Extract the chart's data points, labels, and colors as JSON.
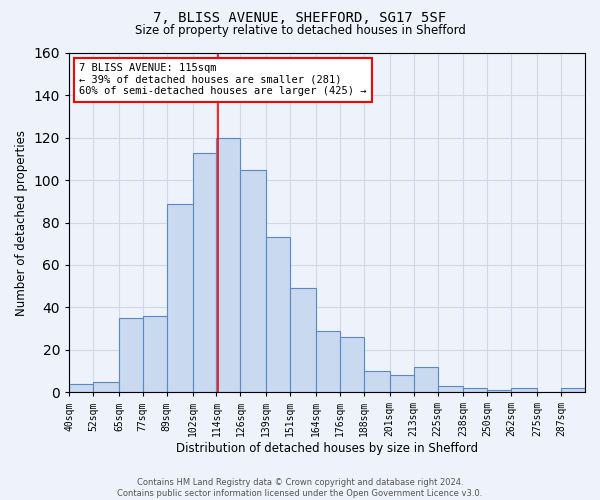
{
  "title": "7, BLISS AVENUE, SHEFFORD, SG17 5SF",
  "subtitle": "Size of property relative to detached houses in Shefford",
  "xlabel": "Distribution of detached houses by size in Shefford",
  "ylabel": "Number of detached properties",
  "bin_labels": [
    "40sqm",
    "52sqm",
    "65sqm",
    "77sqm",
    "89sqm",
    "102sqm",
    "114sqm",
    "126sqm",
    "139sqm",
    "151sqm",
    "164sqm",
    "176sqm",
    "188sqm",
    "201sqm",
    "213sqm",
    "225sqm",
    "238sqm",
    "250sqm",
    "262sqm",
    "275sqm",
    "287sqm"
  ],
  "bin_edges": [
    40,
    52,
    65,
    77,
    89,
    102,
    114,
    126,
    139,
    151,
    164,
    176,
    188,
    201,
    213,
    225,
    238,
    250,
    262,
    275,
    287,
    299
  ],
  "counts": [
    4,
    5,
    35,
    36,
    89,
    113,
    120,
    105,
    73,
    49,
    29,
    26,
    10,
    8,
    12,
    3,
    2,
    1,
    2,
    0,
    2
  ],
  "bar_facecolor": "#c9d9f0",
  "bar_edgecolor": "#5a8ac6",
  "vline_x": 115,
  "vline_color": "red",
  "annotation_line1": "7 BLISS AVENUE: 115sqm",
  "annotation_line2": "← 39% of detached houses are smaller (281)",
  "annotation_line3": "60% of semi-detached houses are larger (425) →",
  "annotation_box_color": "white",
  "annotation_box_edgecolor": "red",
  "grid_color": "#d0d8e8",
  "background_color": "#eef2fa",
  "ylim": [
    0,
    160
  ],
  "yticks": [
    0,
    20,
    40,
    60,
    80,
    100,
    120,
    140,
    160
  ],
  "footer_text": "Contains HM Land Registry data © Crown copyright and database right 2024.\nContains public sector information licensed under the Open Government Licence v3.0."
}
